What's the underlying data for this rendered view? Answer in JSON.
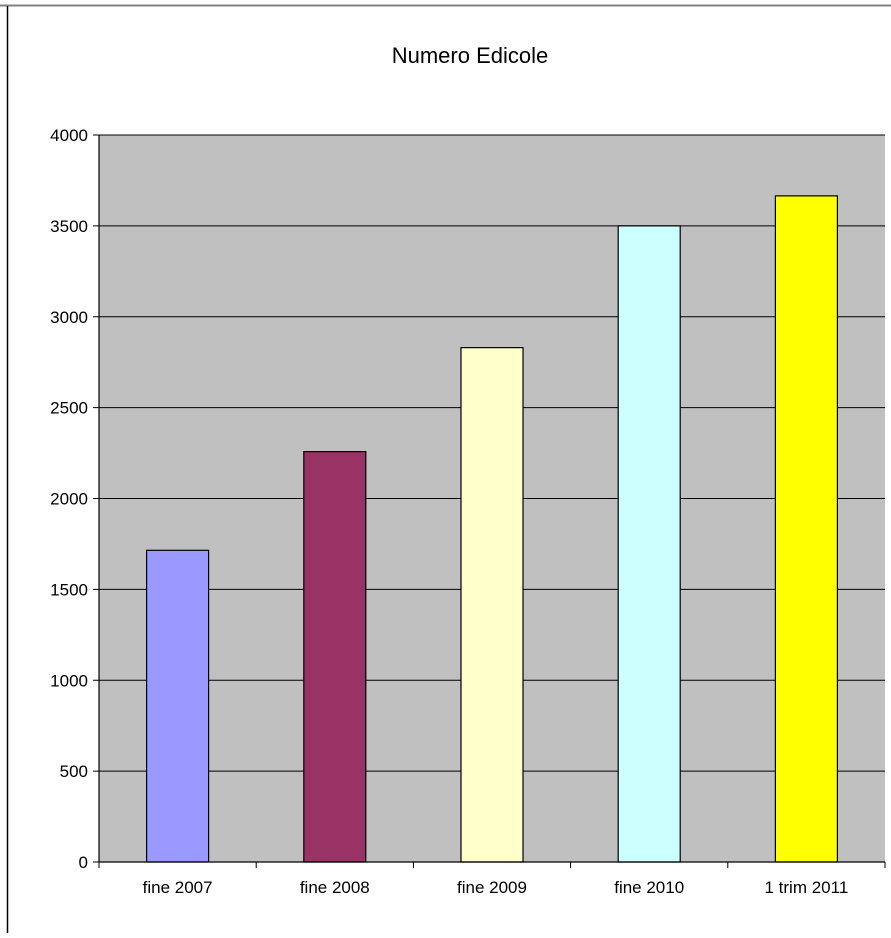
{
  "chart_data": {
    "type": "bar",
    "title": "Numero Edicole",
    "xlabel": "",
    "ylabel": "",
    "categories": [
      "fine 2007",
      "fine 2008",
      "fine 2009",
      "fine 2010",
      "1 trim 2011"
    ],
    "values": [
      1715,
      2258,
      2830,
      3500,
      3665
    ],
    "bar_colors": [
      "#9999FF",
      "#993366",
      "#FFFFCC",
      "#CCFFFF",
      "#FFFF00"
    ],
    "ylim": [
      0,
      4000
    ],
    "yticks": [
      "0",
      "500",
      "1000",
      "1500",
      "2000",
      "2500",
      "3000",
      "3500",
      "4000"
    ],
    "grid": true,
    "legend": "none",
    "plot_background": "#C0C0C0",
    "background": "#FFFFFF"
  }
}
